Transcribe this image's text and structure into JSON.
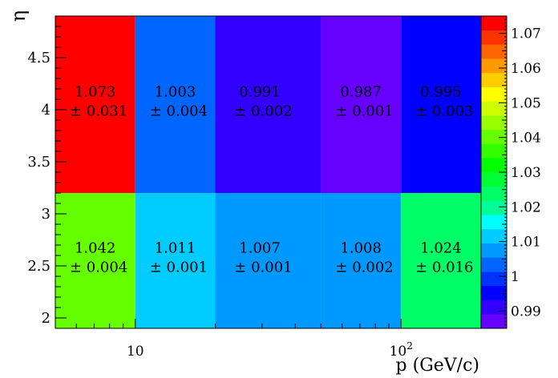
{
  "chart_data": {
    "type": "heatmap",
    "xlabel": "p (GeV/c)",
    "ylabel": "η",
    "x_scale": "log",
    "x_edges": [
      5,
      10,
      20,
      50,
      100,
      200
    ],
    "y_edges": [
      1.9,
      3.2,
      4.9
    ],
    "xlim": [
      5,
      200
    ],
    "ylim": [
      1.9,
      4.9
    ],
    "x_tick_labels": [
      {
        "value": 10,
        "label": "10"
      },
      {
        "value": 100,
        "label": "10",
        "sup": "2"
      }
    ],
    "y_tick_labels": [
      {
        "value": 2,
        "label": "2"
      },
      {
        "value": 2.5,
        "label": "2.5"
      },
      {
        "value": 3,
        "label": "3"
      },
      {
        "value": 3.5,
        "label": "3.5"
      },
      {
        "value": 4,
        "label": "4"
      },
      {
        "value": 4.5,
        "label": "4.5"
      }
    ],
    "zlim": [
      0.985,
      1.075
    ],
    "z_tick_labels": [
      "0.99",
      "1",
      "1.01",
      "1.02",
      "1.03",
      "1.04",
      "1.05",
      "1.06",
      "1.07"
    ],
    "z_ticks": [
      0.99,
      1.0,
      1.01,
      1.02,
      1.03,
      1.04,
      1.05,
      1.06,
      1.07
    ],
    "cells": [
      {
        "xi": 0,
        "yi": 1,
        "value": "1.073",
        "error": "± 0.031"
      },
      {
        "xi": 1,
        "yi": 1,
        "value": "1.003",
        "error": "± 0.004"
      },
      {
        "xi": 2,
        "yi": 1,
        "value": "0.991",
        "error": "± 0.002"
      },
      {
        "xi": 3,
        "yi": 1,
        "value": "0.987",
        "error": "± 0.001"
      },
      {
        "xi": 4,
        "yi": 1,
        "value": "0.995",
        "error": "± 0.003"
      },
      {
        "xi": 0,
        "yi": 0,
        "value": "1.042",
        "error": "± 0.004"
      },
      {
        "xi": 1,
        "yi": 0,
        "value": "1.011",
        "error": "± 0.001"
      },
      {
        "xi": 2,
        "yi": 0,
        "value": "1.007",
        "error": "± 0.001"
      },
      {
        "xi": 3,
        "yi": 0,
        "value": "1.008",
        "error": "± 0.002"
      },
      {
        "xi": 4,
        "yi": 0,
        "value": "1.024",
        "error": "± 0.016"
      }
    ],
    "palette": [
      "#6600ff",
      "#3300ff",
      "#0000ff",
      "#0033ff",
      "#0066ff",
      "#0099ff",
      "#00ccff",
      "#00ffff",
      "#00ff99",
      "#00ff66",
      "#00ff33",
      "#00ff00",
      "#33ff00",
      "#66ff00",
      "#99ff00",
      "#ccff00",
      "#ffff00",
      "#ffcc00",
      "#ff9900",
      "#ff6600",
      "#ff3300",
      "#ff0000"
    ]
  }
}
